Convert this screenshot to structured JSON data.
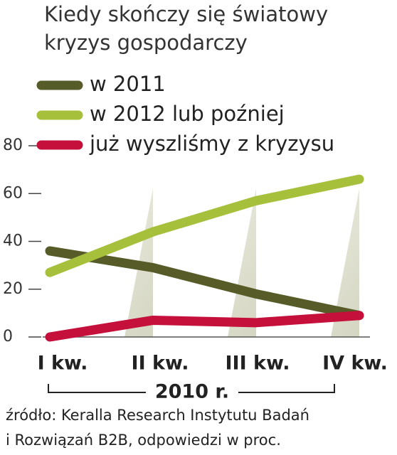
{
  "chart_data": {
    "type": "line",
    "title": [
      "Kiedy skończy się światowy",
      "kryzys gospodarczy"
    ],
    "categories": [
      "I kw.",
      "II kw.",
      "III kw.",
      "IV kw."
    ],
    "xlabel": "2010 r.",
    "series": [
      {
        "name": "w 2011",
        "color": "#565b28",
        "values": [
          36,
          29,
          18,
          9
        ]
      },
      {
        "name": "w 2012 lub poźniej",
        "color": "#a6c03c",
        "values": [
          27,
          44,
          57,
          66
        ]
      },
      {
        "name": "już wyszliśmy z kryzysu",
        "color": "#c4103a",
        "values": [
          0,
          7,
          6,
          9
        ]
      }
    ],
    "ylim": [
      0,
      80
    ],
    "yticks": [
      0,
      20,
      40,
      60,
      80
    ],
    "source": [
      "źródło: Keralla Research Instytutu Badań",
      "i Rozwiązań B2B, odpowiedzi w proc."
    ]
  }
}
